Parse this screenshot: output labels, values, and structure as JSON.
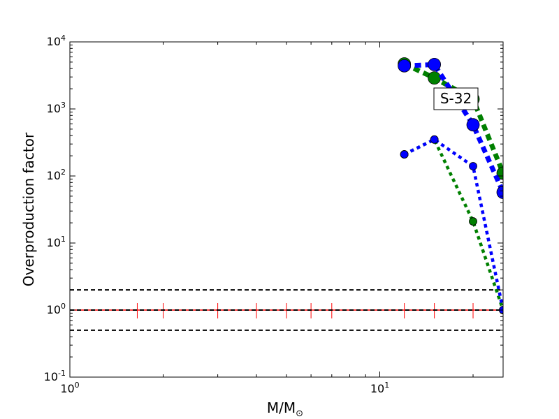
{
  "chart_data": {
    "type": "line",
    "title": "",
    "xlabel": "M/M",
    "xlabel_sub": "⊙",
    "ylabel": "Overproduction factor",
    "xscale": "log",
    "yscale": "log",
    "xlim": [
      1,
      25
    ],
    "ylim": [
      0.1,
      10000
    ],
    "x_ticks": [
      {
        "base": "10",
        "exp": "0"
      },
      {
        "base": "10",
        "exp": "1"
      }
    ],
    "y_ticks": [
      {
        "base": "10",
        "exp": "-1"
      },
      {
        "base": "10",
        "exp": "0"
      },
      {
        "base": "10",
        "exp": "1"
      },
      {
        "base": "10",
        "exp": "2"
      },
      {
        "base": "10",
        "exp": "3"
      },
      {
        "base": "10",
        "exp": "4"
      }
    ],
    "annotation": "S-32",
    "reference_lines": [
      {
        "y": 2.0,
        "style": "dashed",
        "color": "#000000"
      },
      {
        "y": 1.0,
        "style": "dashed",
        "color": "#000000"
      },
      {
        "y": 0.5,
        "style": "dashed",
        "color": "#000000"
      }
    ],
    "solar_line": {
      "y": 1.0,
      "color": "#ff0000",
      "marker_x": [
        1.65,
        2,
        3,
        4,
        5,
        6,
        7,
        12,
        15,
        20,
        25
      ]
    },
    "series": [
      {
        "color": "#008000",
        "style": "thick",
        "x": [
          12,
          15,
          20,
          25
        ],
        "y": [
          4700,
          2900,
          1400,
          110
        ]
      },
      {
        "color": "#0000ff",
        "style": "thick",
        "x": [
          12,
          15,
          20,
          25
        ],
        "y": [
          4400,
          4600,
          580,
          57
        ]
      },
      {
        "color": "#008000",
        "style": "thin",
        "x": [
          12,
          15,
          20,
          25
        ],
        "y": [
          210,
          350,
          21,
          1
        ]
      },
      {
        "color": "#0000ff",
        "style": "thin",
        "x": [
          12,
          15,
          20,
          25
        ],
        "y": [
          210,
          350,
          140,
          1
        ]
      }
    ]
  }
}
